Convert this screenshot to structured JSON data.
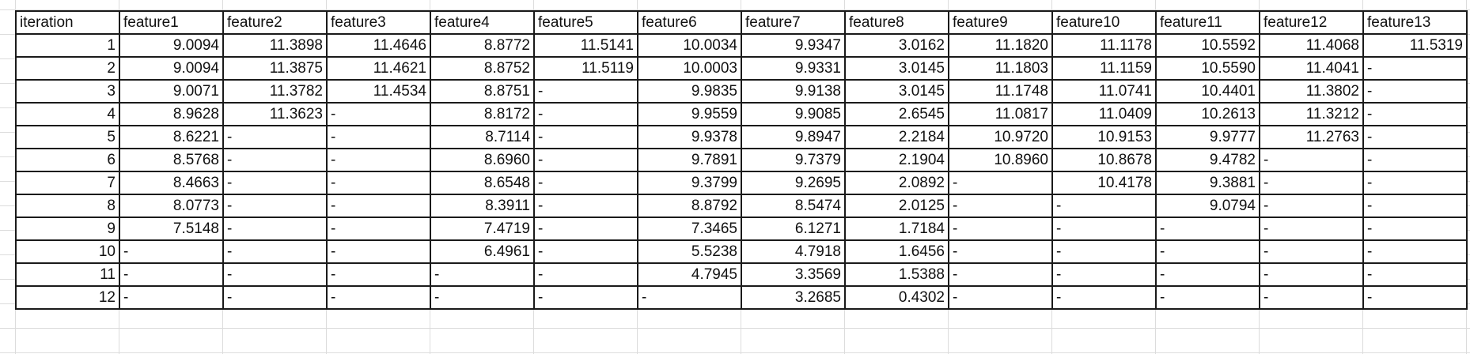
{
  "headers": [
    "iteration",
    "feature1",
    "feature2",
    "feature3",
    "feature4",
    "feature5",
    "feature6",
    "feature7",
    "feature8",
    "feature9",
    "feature10",
    "feature11",
    "feature12",
    "feature13"
  ],
  "rows": [
    [
      "1",
      "9.0094",
      "11.3898",
      "11.4646",
      "8.8772",
      "11.5141",
      "10.0034",
      "9.9347",
      "3.0162",
      "11.1820",
      "11.1178",
      "10.5592",
      "11.4068",
      "11.5319"
    ],
    [
      "2",
      "9.0094",
      "11.3875",
      "11.4621",
      "8.8752",
      "11.5119",
      "10.0003",
      "9.9331",
      "3.0145",
      "11.1803",
      "11.1159",
      "10.5590",
      "11.4041",
      "-"
    ],
    [
      "3",
      "9.0071",
      "11.3782",
      "11.4534",
      "8.8751",
      "-",
      "9.9835",
      "9.9138",
      "3.0145",
      "11.1748",
      "11.0741",
      "10.4401",
      "11.3802",
      "-"
    ],
    [
      "4",
      "8.9628",
      "11.3623",
      "-",
      "8.8172",
      "-",
      "9.9559",
      "9.9085",
      "2.6545",
      "11.0817",
      "11.0409",
      "10.2613",
      "11.3212",
      "-"
    ],
    [
      "5",
      "8.6221",
      "-",
      "-",
      "8.7114",
      "-",
      "9.9378",
      "9.8947",
      "2.2184",
      "10.9720",
      "10.9153",
      "9.9777",
      "11.2763",
      "-"
    ],
    [
      "6",
      "8.5768",
      "-",
      "-",
      "8.6960",
      "-",
      "9.7891",
      "9.7379",
      "2.1904",
      "10.8960",
      "10.8678",
      "9.4782",
      "-",
      "-"
    ],
    [
      "7",
      "8.4663",
      "-",
      "-",
      "8.6548",
      "-",
      "9.3799",
      "9.2695",
      "2.0892",
      "-",
      "10.4178",
      "9.3881",
      "-",
      "-"
    ],
    [
      "8",
      "8.0773",
      "-",
      "-",
      "8.3911",
      "-",
      "8.8792",
      "8.5474",
      "2.0125",
      "-",
      "-",
      "9.0794",
      "-",
      "-"
    ],
    [
      "9",
      "7.5148",
      "-",
      "-",
      "7.4719",
      "-",
      "7.3465",
      "6.1271",
      "1.7184",
      "-",
      "-",
      "-",
      "-",
      "-"
    ],
    [
      "10",
      "-",
      "-",
      "-",
      "6.4961",
      "-",
      "5.5238",
      "4.7918",
      "1.6456",
      "-",
      "-",
      "-",
      "-",
      "-"
    ],
    [
      "11",
      "-",
      "-",
      "-",
      "-",
      "-",
      "4.7945",
      "3.3569",
      "1.5388",
      "-",
      "-",
      "-",
      "-",
      "-"
    ],
    [
      "12",
      "-",
      "-",
      "-",
      "-",
      "-",
      "-",
      "3.2685",
      "0.4302",
      "-",
      "-",
      "-",
      "-",
      "-"
    ]
  ]
}
